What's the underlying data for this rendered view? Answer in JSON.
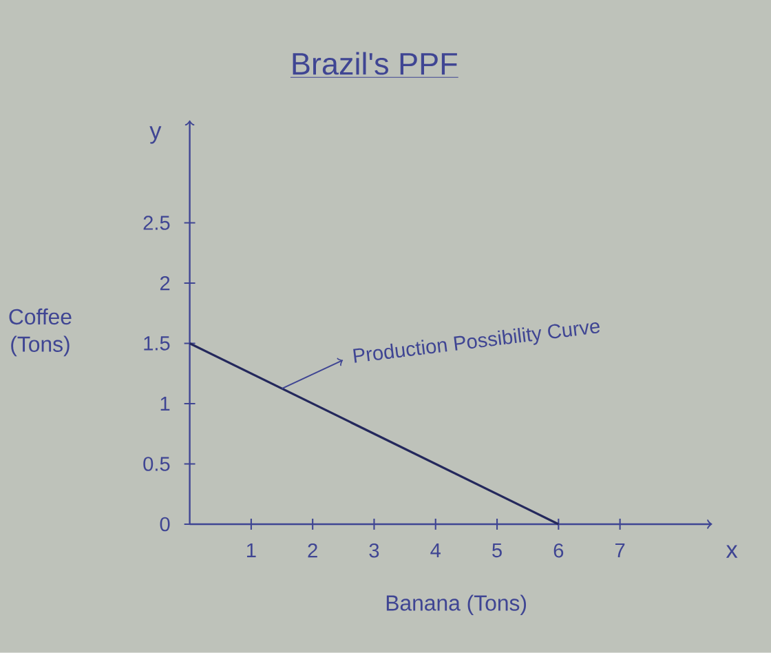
{
  "chart_data": {
    "type": "line",
    "title": "Brazil's PPF",
    "xlabel": "Banana (Tons)",
    "ylabel": "Coffee (Tons)",
    "annotations": [
      {
        "text": "Production Possibility Curve",
        "x": 1.5,
        "y": 1.125
      },
      "y",
      "x"
    ],
    "x": [
      0,
      6
    ],
    "values": [
      1.5,
      0
    ],
    "color": "#24285c",
    "xlim": [
      0,
      8.5
    ],
    "ylim": [
      0,
      3.35
    ],
    "xticks": [
      1,
      2,
      3,
      4,
      5,
      6,
      7
    ],
    "yticks": [
      0,
      0.5,
      1,
      1.5,
      2,
      2.5
    ]
  }
}
